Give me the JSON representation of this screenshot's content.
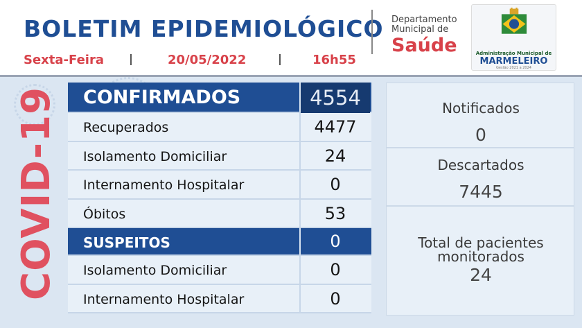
{
  "header": {
    "title": "BOLETIM EPIDEMIOLÓGICO",
    "weekday": "Sexta-Feira",
    "date": "20/05/2022",
    "time": "16h55",
    "department_line1": "Departamento",
    "department_line2": "Municipal de",
    "department_name": "Saúde",
    "logo": {
      "line1": "Administração Municipal de",
      "line2": "MARMELEIRO",
      "line3": "Gestão 2021 a 2024"
    }
  },
  "side_label": "COVID-19",
  "table": {
    "confirmed": {
      "label": "CONFIRMADOS",
      "value": "4554"
    },
    "rows1": [
      {
        "label": "Recuperados",
        "value": "4477"
      },
      {
        "label": "Isolamento Domiciliar",
        "value": "24"
      },
      {
        "label": "Internamento Hospitalar",
        "value": "0"
      },
      {
        "label": "Óbitos",
        "value": "53"
      }
    ],
    "suspects": {
      "label": "SUSPEITOS",
      "value": "0"
    },
    "rows2": [
      {
        "label": "Isolamento Domiciliar",
        "value": "0"
      },
      {
        "label": "Internamento Hospitalar",
        "value": "0"
      }
    ]
  },
  "side_panel": {
    "notified_label": "Notificados",
    "notified_value": "0",
    "discarded_label": "Descartados",
    "discarded_value": "7445",
    "monitored_label_1": "Total de pacientes",
    "monitored_label_2": "monitorados",
    "monitored_value": "24"
  },
  "colors": {
    "brand_blue": "#1f4e94",
    "accent_red": "#d8424a",
    "panel_bg": "#e8f0f8",
    "background": "#dbe6f2"
  }
}
